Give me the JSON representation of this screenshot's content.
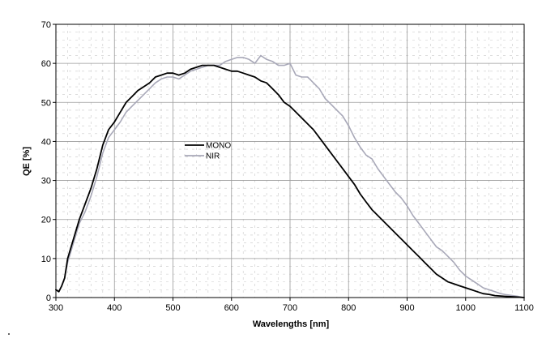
{
  "chart_data": {
    "type": "line",
    "xlabel": "Wavelengths [nm]",
    "ylabel": "QE [%]",
    "xlim": [
      300,
      1100
    ],
    "ylim": [
      0,
      70
    ],
    "x_ticks": [
      300,
      400,
      500,
      600,
      700,
      800,
      900,
      1000,
      1100
    ],
    "y_ticks": [
      0,
      10,
      20,
      30,
      40,
      50,
      60,
      70
    ],
    "grid": true,
    "legend_position": "center-left",
    "series": [
      {
        "name": "MONO",
        "color": "#000000",
        "points": [
          [
            300,
            2
          ],
          [
            305,
            1.5
          ],
          [
            310,
            3
          ],
          [
            315,
            5
          ],
          [
            320,
            10
          ],
          [
            330,
            15
          ],
          [
            340,
            20
          ],
          [
            350,
            24
          ],
          [
            360,
            28
          ],
          [
            370,
            33
          ],
          [
            380,
            39
          ],
          [
            390,
            43
          ],
          [
            400,
            45
          ],
          [
            410,
            47.5
          ],
          [
            420,
            50
          ],
          [
            430,
            51.5
          ],
          [
            440,
            53
          ],
          [
            450,
            54
          ],
          [
            460,
            55
          ],
          [
            470,
            56.5
          ],
          [
            480,
            57
          ],
          [
            490,
            57.5
          ],
          [
            500,
            57.5
          ],
          [
            510,
            57
          ],
          [
            520,
            57.5
          ],
          [
            530,
            58.5
          ],
          [
            540,
            59
          ],
          [
            550,
            59.5
          ],
          [
            560,
            59.5
          ],
          [
            570,
            59.5
          ],
          [
            580,
            59
          ],
          [
            590,
            58.5
          ],
          [
            600,
            58
          ],
          [
            610,
            58
          ],
          [
            620,
            57.5
          ],
          [
            630,
            57
          ],
          [
            640,
            56.5
          ],
          [
            650,
            55.5
          ],
          [
            660,
            55
          ],
          [
            670,
            53.5
          ],
          [
            680,
            52
          ],
          [
            690,
            50
          ],
          [
            700,
            49
          ],
          [
            710,
            47.5
          ],
          [
            720,
            46
          ],
          [
            730,
            44.5
          ],
          [
            740,
            43
          ],
          [
            750,
            41
          ],
          [
            760,
            39
          ],
          [
            770,
            37
          ],
          [
            780,
            35
          ],
          [
            790,
            33
          ],
          [
            800,
            31
          ],
          [
            810,
            29
          ],
          [
            820,
            26.5
          ],
          [
            830,
            24.5
          ],
          [
            840,
            22.5
          ],
          [
            850,
            21
          ],
          [
            860,
            19.5
          ],
          [
            870,
            18
          ],
          [
            880,
            16.5
          ],
          [
            890,
            15
          ],
          [
            900,
            13.5
          ],
          [
            910,
            12
          ],
          [
            920,
            10.5
          ],
          [
            930,
            9
          ],
          [
            940,
            7.5
          ],
          [
            950,
            6
          ],
          [
            960,
            5
          ],
          [
            970,
            4
          ],
          [
            980,
            3.5
          ],
          [
            990,
            3
          ],
          [
            1000,
            2.5
          ],
          [
            1010,
            2
          ],
          [
            1020,
            1.5
          ],
          [
            1030,
            1
          ],
          [
            1040,
            0.8
          ],
          [
            1050,
            0.5
          ],
          [
            1060,
            0.4
          ],
          [
            1070,
            0.3
          ],
          [
            1080,
            0.2
          ],
          [
            1090,
            0.1
          ],
          [
            1100,
            0
          ]
        ]
      },
      {
        "name": "NIR",
        "color": "#a8a8b8",
        "points": [
          [
            300,
            2
          ],
          [
            305,
            1.5
          ],
          [
            310,
            3
          ],
          [
            315,
            5
          ],
          [
            320,
            9
          ],
          [
            330,
            14
          ],
          [
            340,
            19
          ],
          [
            350,
            22
          ],
          [
            360,
            26
          ],
          [
            370,
            31
          ],
          [
            380,
            37
          ],
          [
            390,
            41
          ],
          [
            400,
            43
          ],
          [
            410,
            45
          ],
          [
            420,
            47.5
          ],
          [
            430,
            49
          ],
          [
            440,
            50.5
          ],
          [
            450,
            52
          ],
          [
            460,
            53.5
          ],
          [
            470,
            55
          ],
          [
            480,
            56
          ],
          [
            490,
            56.5
          ],
          [
            500,
            56.5
          ],
          [
            510,
            56
          ],
          [
            520,
            57
          ],
          [
            530,
            58
          ],
          [
            540,
            58.5
          ],
          [
            550,
            59
          ],
          [
            560,
            59.5
          ],
          [
            570,
            59.5
          ],
          [
            580,
            59.5
          ],
          [
            590,
            60.5
          ],
          [
            600,
            61
          ],
          [
            610,
            61.5
          ],
          [
            620,
            61.5
          ],
          [
            630,
            61
          ],
          [
            640,
            60
          ],
          [
            650,
            62
          ],
          [
            660,
            61
          ],
          [
            670,
            60.5
          ],
          [
            680,
            59.5
          ],
          [
            690,
            59.5
          ],
          [
            700,
            60
          ],
          [
            710,
            57
          ],
          [
            720,
            56.5
          ],
          [
            730,
            56.5
          ],
          [
            740,
            55
          ],
          [
            750,
            53.5
          ],
          [
            760,
            51
          ],
          [
            770,
            49.5
          ],
          [
            780,
            48
          ],
          [
            790,
            46.5
          ],
          [
            800,
            44
          ],
          [
            810,
            41
          ],
          [
            820,
            38.5
          ],
          [
            830,
            36.5
          ],
          [
            840,
            35.5
          ],
          [
            850,
            33
          ],
          [
            860,
            31
          ],
          [
            870,
            29
          ],
          [
            880,
            27
          ],
          [
            890,
            25.5
          ],
          [
            900,
            23.5
          ],
          [
            910,
            21
          ],
          [
            920,
            19
          ],
          [
            930,
            17
          ],
          [
            940,
            15
          ],
          [
            950,
            13
          ],
          [
            960,
            12
          ],
          [
            970,
            10.5
          ],
          [
            980,
            9
          ],
          [
            990,
            7
          ],
          [
            1000,
            5.5
          ],
          [
            1010,
            4.5
          ],
          [
            1020,
            3.5
          ],
          [
            1030,
            2.5
          ],
          [
            1040,
            2
          ],
          [
            1050,
            1.5
          ],
          [
            1060,
            1
          ],
          [
            1070,
            0.7
          ],
          [
            1080,
            0.5
          ],
          [
            1090,
            0.3
          ],
          [
            1100,
            0
          ]
        ]
      }
    ]
  }
}
